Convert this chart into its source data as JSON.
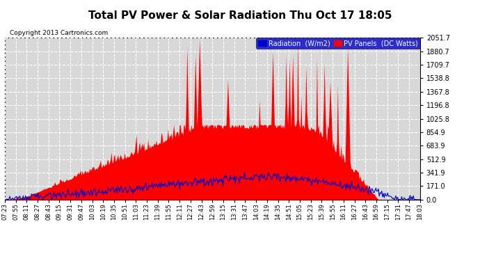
{
  "title": "Total PV Power & Solar Radiation Thu Oct 17 18:05",
  "copyright": "Copyright 2013 Cartronics.com",
  "legend_radiation": "Radiation  (W/m2)",
  "legend_pv": "PV Panels  (DC Watts)",
  "ymax": 2051.7,
  "ymin": 0.0,
  "yticks": [
    0.0,
    171.0,
    341.9,
    512.9,
    683.9,
    854.9,
    1025.8,
    1196.8,
    1367.8,
    1538.8,
    1709.7,
    1880.7,
    2051.7
  ],
  "bg_color": "#ffffff",
  "plot_bg_color": "#d8d8d8",
  "grid_color": "#ffffff",
  "red_fill_color": "#ff0000",
  "blue_line_color": "#0000cc",
  "x_labels": [
    "07:23",
    "07:55",
    "08:11",
    "08:27",
    "08:43",
    "09:15",
    "09:31",
    "09:47",
    "10:03",
    "10:19",
    "10:35",
    "10:51",
    "11:03",
    "11:23",
    "11:39",
    "11:55",
    "12:11",
    "12:27",
    "12:43",
    "12:59",
    "13:15",
    "13:31",
    "13:47",
    "14:03",
    "14:19",
    "14:35",
    "14:51",
    "15:05",
    "15:23",
    "15:39",
    "15:55",
    "16:11",
    "16:27",
    "16:43",
    "16:59",
    "17:15",
    "17:31",
    "17:47",
    "18:03"
  ]
}
